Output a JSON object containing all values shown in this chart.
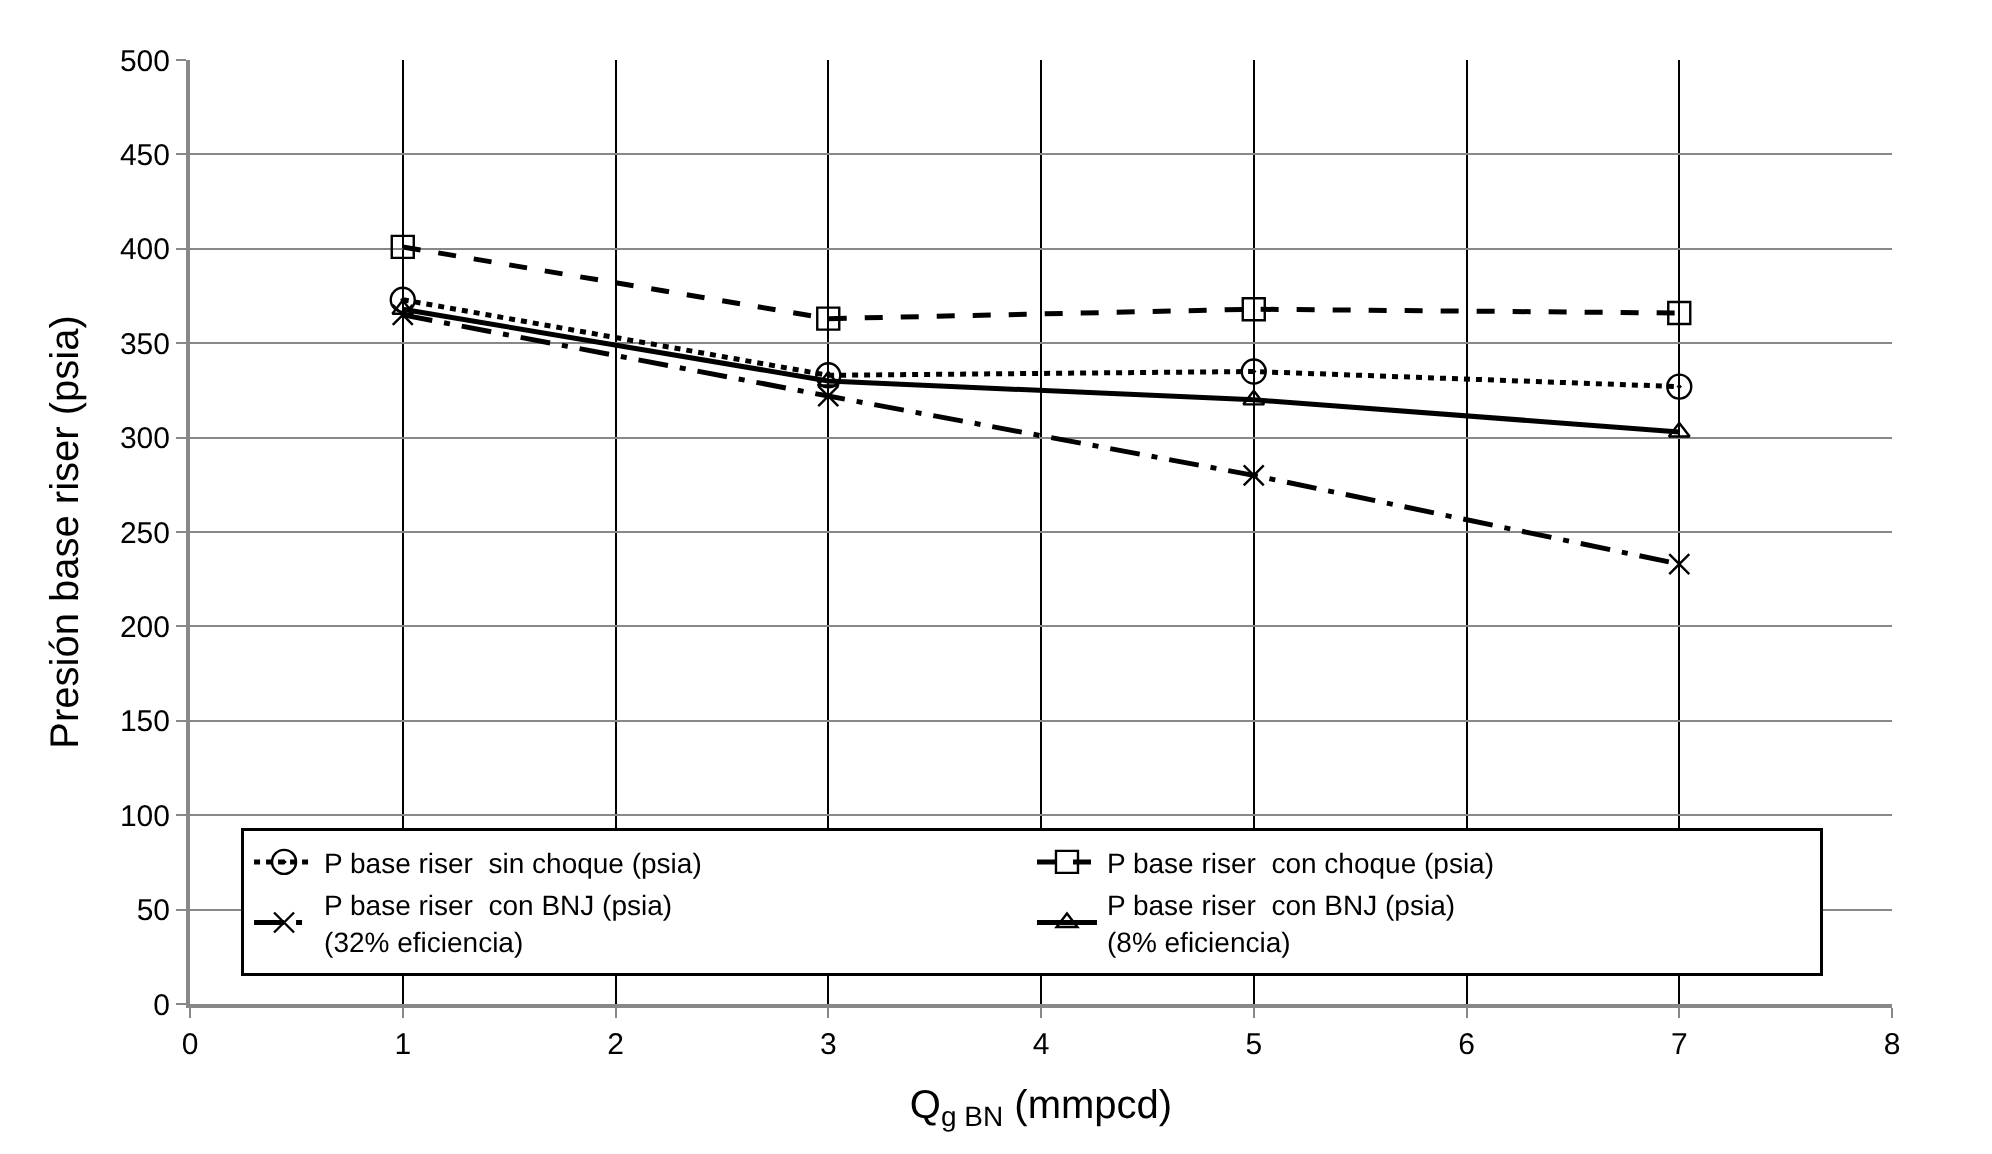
{
  "chart_data": {
    "type": "line",
    "xlabel": "Q$_{g BN}$ (mmpcd)",
    "ylabel": "Presión base riser (psia)",
    "x": [
      1,
      3,
      5,
      7
    ],
    "xlim": [
      0,
      8
    ],
    "xticks": [
      0,
      1,
      2,
      3,
      4,
      5,
      6,
      7,
      8
    ],
    "ylim": [
      0,
      500
    ],
    "yticks": [
      0,
      50,
      100,
      150,
      200,
      250,
      300,
      350,
      400,
      450,
      500
    ],
    "grid": true,
    "legend": "bottom",
    "series": [
      {
        "name": "P base riser  sin choque (psia)",
        "color": "#000000",
        "values": [
          373,
          333,
          335,
          327
        ],
        "marker": "circle",
        "line_style": "dotted"
      },
      {
        "name": "P base riser  con choque (psia)",
        "color": "#000000",
        "values": [
          401,
          363,
          368,
          366
        ],
        "marker": "square",
        "line_style": "dashed"
      },
      {
        "name": "P base riser  con BNJ (psia)\n(32% eficiencia)",
        "color": "#000000",
        "values": [
          365,
          322,
          280,
          233
        ],
        "marker": "cross",
        "line_style": "dashdot"
      },
      {
        "name": "P base riser  con BNJ (psia)\n(8% eficiencia)",
        "color": "#000000",
        "values": [
          368,
          330,
          320,
          303
        ],
        "marker": "triangle",
        "line_style": "solid"
      }
    ]
  }
}
